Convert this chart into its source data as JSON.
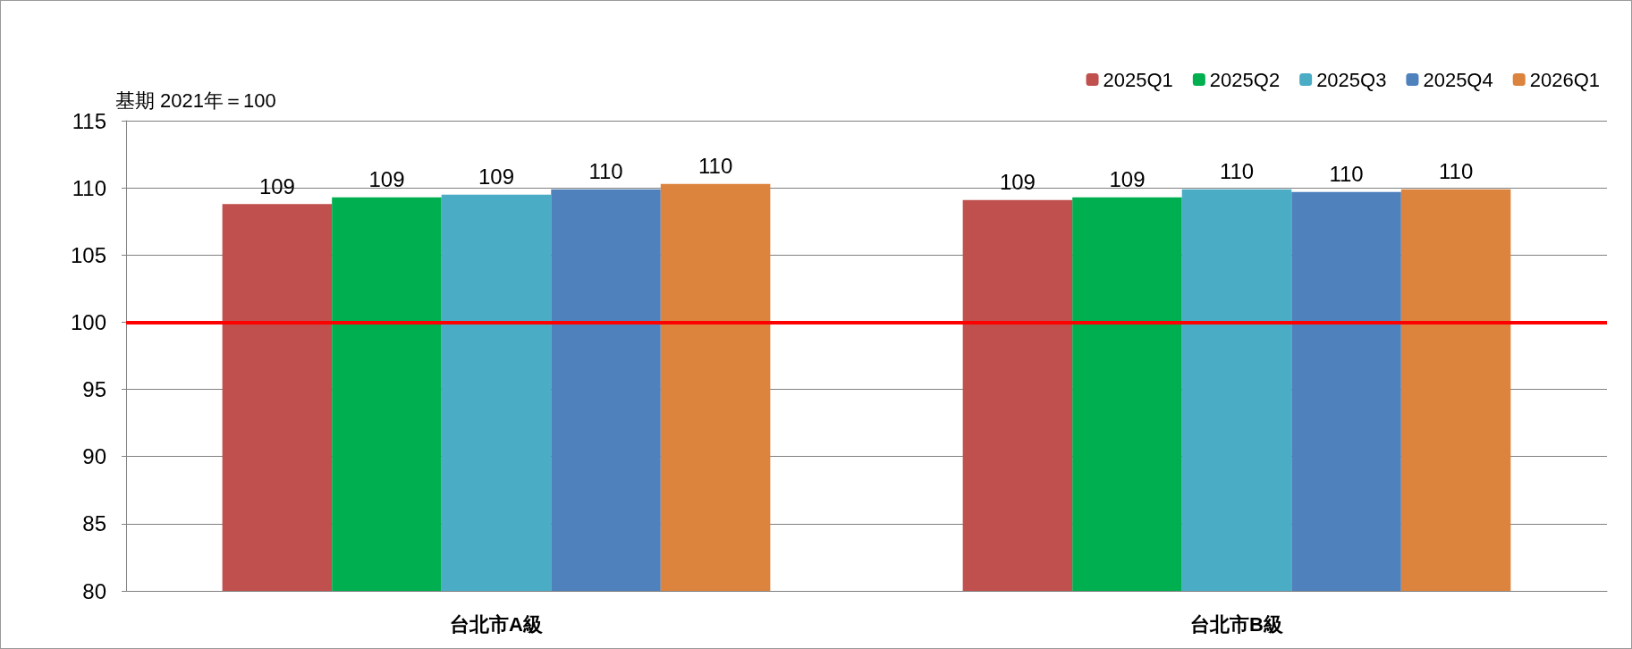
{
  "chart_data": {
    "type": "bar",
    "categories": [
      "台北市A級",
      "台北市B級"
    ],
    "series": [
      {
        "name": "2025Q1",
        "color": "#c0504d",
        "values": [
          108.8,
          109.1
        ],
        "value_labels": [
          "109",
          "109"
        ]
      },
      {
        "name": "2025Q2",
        "color": "#00b050",
        "values": [
          109.3,
          109.3
        ],
        "value_labels": [
          "109",
          "109"
        ]
      },
      {
        "name": "2025Q3",
        "color": "#4bacc6",
        "values": [
          109.5,
          109.9
        ],
        "value_labels": [
          "109",
          "110"
        ]
      },
      {
        "name": "2025Q4",
        "color": "#4f81bd",
        "values": [
          109.9,
          109.7
        ],
        "value_labels": [
          "110",
          "110"
        ]
      },
      {
        "name": "2026Q1",
        "color": "#dc833d",
        "values": [
          110.3,
          109.9
        ],
        "value_labels": [
          "110",
          "110"
        ]
      }
    ],
    "ylim": [
      80,
      115
    ],
    "yticks": [
      80,
      85,
      90,
      95,
      100,
      105,
      110,
      115
    ],
    "grid": "y",
    "legend": "top right",
    "ref_lines": [
      {
        "axis": "y",
        "value": 100,
        "color": "#ff0000"
      }
    ],
    "annotations": [
      "基期 2021年＝100"
    ]
  }
}
